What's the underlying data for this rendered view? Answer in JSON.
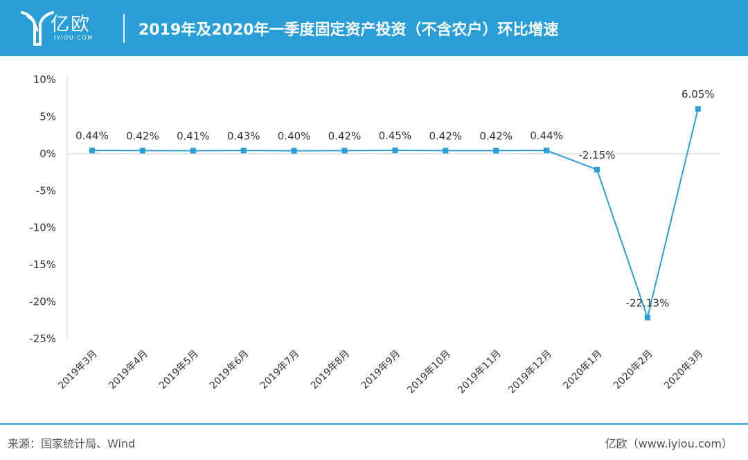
{
  "header": {
    "brand": "亿欧",
    "brand_sub": "IYIOU·COM",
    "title": "2019年及2020年一季度固定资产投资（不含农户）环比增速",
    "bg_color": "#2a9ed6"
  },
  "footer": {
    "source": "来源：国家统计局、Wind",
    "brand": "亿欧（www.iyiou.com）"
  },
  "chart_data": {
    "type": "line",
    "categories": [
      "2019年3月",
      "2019年4月",
      "2019年5月",
      "2019年6月",
      "2019年7月",
      "2019年8月",
      "2019年9月",
      "2019年10月",
      "2019年11月",
      "2019年12月",
      "2020年1月",
      "2020年2月",
      "2020年3月"
    ],
    "values": [
      0.44,
      0.42,
      0.41,
      0.43,
      0.4,
      0.42,
      0.45,
      0.42,
      0.42,
      0.44,
      -2.15,
      -22.13,
      6.05
    ],
    "data_labels": [
      "0.44%",
      "0.42%",
      "0.41%",
      "0.43%",
      "0.40%",
      "0.42%",
      "0.45%",
      "0.42%",
      "0.42%",
      "0.44%",
      "-2.15%",
      "-22.13%",
      "6.05%"
    ],
    "y_ticks": [
      "10%",
      "5%",
      "0%",
      "-5%",
      "-10%",
      "-15%",
      "-20%",
      "-25%"
    ],
    "ylim": [
      -25,
      10
    ],
    "title": "",
    "xlabel": "",
    "ylabel": "",
    "grid": false,
    "line_color": "#2a9ed6",
    "marker": "square"
  }
}
